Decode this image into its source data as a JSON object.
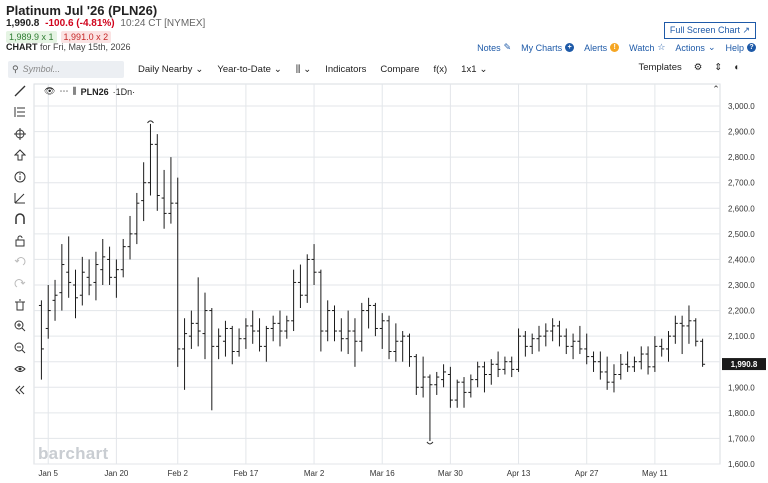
{
  "header": {
    "title": "Platinum Jul '26 (PLN26)",
    "last": "1,990.8",
    "change": "-100.6 (-4.81%)",
    "time": "10:24 CT [NYMEX]",
    "bid": "1,989.9 x 1",
    "ask": "1,991.0 x 2",
    "chart_for_label": "CHART",
    "chart_for_text": "for Fri, May 15th, 2026",
    "fullscreen": "Full Screen Chart ↗",
    "links": {
      "notes": "Notes",
      "mycharts": "My Charts",
      "alerts": "Alerts",
      "watch": "Watch",
      "actions": "Actions",
      "help": "Help"
    }
  },
  "toolbar": {
    "search_placeholder": "Symbol...",
    "period": "Daily Nearby",
    "range": "Year-to-Date",
    "indicators": "Indicators",
    "compare": "Compare",
    "fx": "f(x)",
    "interval": "1x1",
    "templates": "Templates"
  },
  "legend": {
    "symbol": "PLN26",
    "suffix": "·1Dn·"
  },
  "watermark": "barchart",
  "colors": {
    "bar": "#1a1a1a",
    "grid": "#e3e6ea",
    "last_price_bg": "#1a1a1a",
    "change_negative": "#d0021b",
    "link": "#1e5aa8"
  },
  "icons": [
    "draw-line-icon",
    "fib-icon",
    "crosshair-icon",
    "arrow-up-icon",
    "info-icon",
    "measure-icon",
    "magnet-icon",
    "lock-icon",
    "undo-icon",
    "redo-icon",
    "trash-icon",
    "zoom-in-icon",
    "zoom-out-icon",
    "eye-icon",
    "collapse-icon"
  ],
  "chart_data": {
    "type": "ohlc",
    "title": "",
    "ylim": [
      1600,
      3000
    ],
    "y_ticks": [
      1600,
      1700,
      1800,
      1900,
      2000,
      2100,
      2200,
      2300,
      2400,
      2500,
      2600,
      2700,
      2800,
      2900,
      3000
    ],
    "y_tick_labels": [
      "1,600.0",
      "1,700.0",
      "1,800.0",
      "1,900.0",
      "2,000.0",
      "2,100.0",
      "2,200.0",
      "2,300.0",
      "2,400.0",
      "2,500.0",
      "2,600.0",
      "2,700.0",
      "2,800.0",
      "2,900.0",
      "3,000.0"
    ],
    "x_labels": [
      "Jan 5",
      "Jan 20",
      "Feb 2",
      "Feb 17",
      "Mar 2",
      "Mar 16",
      "Mar 30",
      "Apr 13",
      "Apr 27",
      "May 11"
    ],
    "x_label_bar_index": [
      1,
      11,
      20,
      30,
      40,
      50,
      60,
      70,
      80,
      90
    ],
    "last_price_label": "1,990.8",
    "last_price": 1990.8,
    "high_marker": 2930,
    "low_marker": 1690,
    "bars": [
      [
        2220,
        2240,
        1930,
        2050
      ],
      [
        2130,
        2300,
        2090,
        2200
      ],
      [
        2240,
        2320,
        2160,
        2260
      ],
      [
        2270,
        2460,
        2200,
        2380
      ],
      [
        2350,
        2490,
        2250,
        2310
      ],
      [
        2300,
        2360,
        2170,
        2250
      ],
      [
        2260,
        2410,
        2220,
        2350
      ],
      [
        2330,
        2400,
        2260,
        2300
      ],
      [
        2310,
        2430,
        2240,
        2380
      ],
      [
        2360,
        2480,
        2300,
        2410
      ],
      [
        2400,
        2450,
        2300,
        2330
      ],
      [
        2330,
        2400,
        2250,
        2360
      ],
      [
        2360,
        2480,
        2330,
        2450
      ],
      [
        2450,
        2570,
        2400,
        2500
      ],
      [
        2500,
        2660,
        2460,
        2620
      ],
      [
        2630,
        2780,
        2550,
        2700
      ],
      [
        2700,
        2930,
        2650,
        2850
      ],
      [
        2850,
        2890,
        2590,
        2650
      ],
      [
        2640,
        2750,
        2520,
        2580
      ],
      [
        2580,
        2800,
        2540,
        2620
      ],
      [
        2620,
        2720,
        1980,
        2050
      ],
      [
        2050,
        2170,
        1890,
        2110
      ],
      [
        2100,
        2200,
        2050,
        2150
      ],
      [
        2150,
        2330,
        2060,
        2120
      ],
      [
        2110,
        2270,
        2010,
        2200
      ],
      [
        2200,
        2210,
        1810,
        2060
      ],
      [
        2060,
        2130,
        2010,
        2100
      ],
      [
        2080,
        2160,
        2020,
        2130
      ],
      [
        2130,
        2140,
        1990,
        2040
      ],
      [
        2040,
        2130,
        2020,
        2090
      ],
      [
        2090,
        2170,
        2050,
        2140
      ],
      [
        2140,
        2200,
        2070,
        2120
      ],
      [
        2120,
        2170,
        2040,
        2060
      ],
      [
        2060,
        2140,
        2000,
        2130
      ],
      [
        2130,
        2180,
        2080,
        2150
      ],
      [
        2150,
        2200,
        2060,
        2120
      ],
      [
        2120,
        2180,
        2090,
        2160
      ],
      [
        2160,
        2360,
        2120,
        2310
      ],
      [
        2310,
        2380,
        2210,
        2260
      ],
      [
        2260,
        2420,
        2230,
        2400
      ],
      [
        2400,
        2460,
        2300,
        2350
      ],
      [
        2350,
        2360,
        2040,
        2120
      ],
      [
        2120,
        2240,
        2080,
        2200
      ],
      [
        2200,
        2220,
        2080,
        2120
      ],
      [
        2120,
        2170,
        2040,
        2090
      ],
      [
        2090,
        2200,
        2030,
        2120
      ],
      [
        2120,
        2170,
        1980,
        2080
      ],
      [
        2080,
        2230,
        2040,
        2200
      ],
      [
        2200,
        2250,
        2130,
        2220
      ],
      [
        2220,
        2230,
        2100,
        2130
      ],
      [
        2130,
        2190,
        2050,
        2160
      ],
      [
        2160,
        2180,
        2010,
        2040
      ],
      [
        2040,
        2150,
        2000,
        2080
      ],
      [
        2080,
        2120,
        2000,
        2100
      ],
      [
        2100,
        2110,
        1980,
        2020
      ],
      [
        2020,
        2030,
        1870,
        1900
      ],
      [
        1900,
        2020,
        1860,
        1940
      ],
      [
        1940,
        1950,
        1690,
        1910
      ],
      [
        1910,
        1960,
        1870,
        1940
      ],
      [
        1930,
        1990,
        1900,
        1960
      ],
      [
        1950,
        1980,
        1820,
        1850
      ],
      [
        1850,
        1930,
        1820,
        1920
      ],
      [
        1920,
        1940,
        1820,
        1880
      ],
      [
        1880,
        1950,
        1860,
        1930
      ],
      [
        1930,
        2000,
        1900,
        1980
      ],
      [
        1980,
        2000,
        1880,
        1950
      ],
      [
        1950,
        2010,
        1910,
        1990
      ],
      [
        1990,
        2040,
        1940,
        1970
      ],
      [
        1970,
        2020,
        1950,
        2000
      ],
      [
        2000,
        2020,
        1940,
        1970
      ],
      [
        1970,
        2130,
        1960,
        2100
      ],
      [
        2100,
        2120,
        2020,
        2060
      ],
      [
        2060,
        2110,
        2030,
        2090
      ],
      [
        2090,
        2140,
        2040,
        2100
      ],
      [
        2100,
        2150,
        2060,
        2120
      ],
      [
        2120,
        2170,
        2080,
        2140
      ],
      [
        2140,
        2160,
        2060,
        2100
      ],
      [
        2100,
        2130,
        2030,
        2060
      ],
      [
        2060,
        2110,
        2010,
        2080
      ],
      [
        2080,
        2140,
        2030,
        2050
      ],
      [
        2050,
        2110,
        1990,
        2020
      ],
      [
        2020,
        2040,
        1960,
        2000
      ],
      [
        2000,
        2040,
        1930,
        1960
      ],
      [
        1960,
        2020,
        1890,
        1920
      ],
      [
        1920,
        1990,
        1880,
        1950
      ],
      [
        1950,
        2030,
        1930,
        1990
      ],
      [
        1990,
        2040,
        1960,
        1980
      ],
      [
        1980,
        2020,
        1960,
        2000
      ],
      [
        2000,
        2060,
        1970,
        2030
      ],
      [
        2030,
        2060,
        1950,
        1980
      ],
      [
        1980,
        2100,
        1960,
        2060
      ],
      [
        2060,
        2090,
        2020,
        2050
      ],
      [
        2050,
        2120,
        2000,
        2100
      ],
      [
        2100,
        2180,
        2070,
        2150
      ],
      [
        2150,
        2180,
        2030,
        2140
      ],
      [
        2140,
        2220,
        2070,
        2160
      ],
      [
        2160,
        2170,
        2060,
        2080
      ],
      [
        2080,
        2090,
        1980,
        1990
      ]
    ]
  }
}
